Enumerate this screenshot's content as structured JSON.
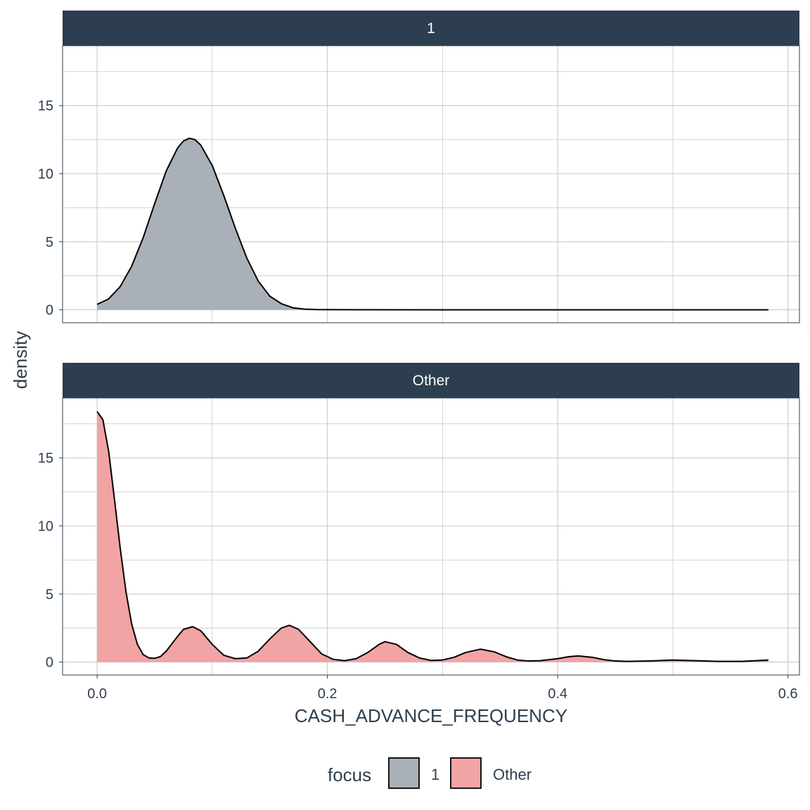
{
  "colors": {
    "strip_background": "#2d3e50",
    "grid": "#c8c8c8",
    "panel_border": "#2d3e50",
    "text": "#2d3e50",
    "fill_1": "#a9b0b8",
    "fill_other": "#f2a3a3",
    "line": "#000000"
  },
  "chart_data": {
    "type": "area",
    "xlabel": "CASH_ADVANCE_FREQUENCY",
    "ylabel": "density",
    "xlim": [
      -0.03,
      0.61
    ],
    "ylim": [
      -0.95,
      19.4
    ],
    "x_ticks": [
      0.0,
      0.2,
      0.4,
      0.6
    ],
    "x_tick_labels": [
      "0.0",
      "0.2",
      "0.4",
      "0.6"
    ],
    "y_ticks": [
      0,
      5,
      10,
      15
    ],
    "y_tick_labels": [
      "0",
      "5",
      "10",
      "15"
    ],
    "grid": true,
    "legend": {
      "title": "focus",
      "placement": "bottom",
      "entries": [
        {
          "label": "1",
          "color": "#a9b0b8"
        },
        {
          "label": "Other",
          "color": "#f2a3a3"
        }
      ]
    },
    "facets": [
      {
        "strip_label": "1",
        "fill": "#a9b0b8",
        "x": [
          0.0,
          0.01,
          0.02,
          0.03,
          0.04,
          0.05,
          0.06,
          0.07,
          0.075,
          0.08,
          0.085,
          0.09,
          0.1,
          0.11,
          0.12,
          0.13,
          0.14,
          0.15,
          0.16,
          0.17,
          0.18,
          0.19,
          0.2,
          0.3,
          0.4,
          0.5,
          0.583
        ],
        "y": [
          0.4,
          0.8,
          1.7,
          3.2,
          5.3,
          7.8,
          10.2,
          11.9,
          12.4,
          12.6,
          12.5,
          12.1,
          10.6,
          8.4,
          6.0,
          3.8,
          2.1,
          1.0,
          0.45,
          0.15,
          0.05,
          0.02,
          0.01,
          0.0,
          0.0,
          0.0,
          0.0
        ]
      },
      {
        "strip_label": "Other",
        "fill": "#f2a3a3",
        "x": [
          0.0,
          0.005,
          0.01,
          0.015,
          0.02,
          0.025,
          0.03,
          0.035,
          0.04,
          0.045,
          0.05,
          0.055,
          0.06,
          0.07,
          0.075,
          0.083,
          0.09,
          0.1,
          0.11,
          0.12,
          0.13,
          0.14,
          0.15,
          0.16,
          0.167,
          0.175,
          0.185,
          0.195,
          0.205,
          0.215,
          0.225,
          0.235,
          0.245,
          0.25,
          0.26,
          0.27,
          0.28,
          0.29,
          0.3,
          0.31,
          0.32,
          0.333,
          0.345,
          0.355,
          0.365,
          0.375,
          0.385,
          0.4,
          0.41,
          0.418,
          0.43,
          0.44,
          0.45,
          0.46,
          0.48,
          0.5,
          0.52,
          0.54,
          0.56,
          0.583
        ],
        "y": [
          18.4,
          17.8,
          15.5,
          12.0,
          8.4,
          5.2,
          2.8,
          1.3,
          0.55,
          0.3,
          0.28,
          0.4,
          0.8,
          1.9,
          2.4,
          2.6,
          2.3,
          1.3,
          0.5,
          0.25,
          0.3,
          0.8,
          1.7,
          2.5,
          2.7,
          2.4,
          1.5,
          0.6,
          0.2,
          0.1,
          0.25,
          0.7,
          1.3,
          1.5,
          1.3,
          0.7,
          0.3,
          0.12,
          0.15,
          0.35,
          0.7,
          0.95,
          0.75,
          0.4,
          0.15,
          0.08,
          0.1,
          0.25,
          0.4,
          0.45,
          0.35,
          0.18,
          0.08,
          0.05,
          0.08,
          0.15,
          0.1,
          0.05,
          0.05,
          0.15
        ]
      }
    ]
  }
}
